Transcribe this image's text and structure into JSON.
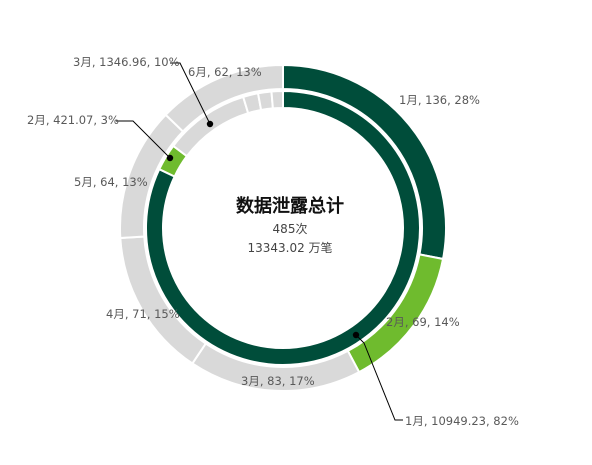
{
  "chart_data": {
    "type": "donut",
    "center": {
      "title": "数据泄露总计",
      "count": "485次",
      "volume": "13343.02 万笔"
    },
    "rings": [
      {
        "ring": "outer",
        "values": [
          {
            "label": "1月",
            "value": 136,
            "percent": "28%",
            "color": "#004d3a"
          },
          {
            "label": "2月",
            "value": 69,
            "percent": "14%",
            "color": "#6fbb2e"
          },
          {
            "label": "3月",
            "value": 83,
            "percent": "17%",
            "color": "#d9d9d9"
          },
          {
            "label": "4月",
            "value": 71,
            "percent": "15%",
            "color": "#d9d9d9"
          },
          {
            "label": "5月",
            "value": 64,
            "percent": "13%",
            "color": "#d9d9d9"
          },
          {
            "label": "6月",
            "value": 62,
            "percent": "13%",
            "color": "#d9d9d9"
          }
        ]
      },
      {
        "ring": "inner",
        "values": [
          {
            "label": "1月",
            "value": 10949.23,
            "percent": "82%",
            "color": "#004d3a"
          },
          {
            "label": "2月",
            "value": 421.07,
            "percent": "3%",
            "color": "#6fbb2e"
          },
          {
            "label": "3月",
            "value": 1346.96,
            "percent": "10%",
            "color": "#d9d9d9"
          },
          {
            "label": "4月",
            "value": 236.5,
            "percent": "",
            "color": "#d9d9d9"
          },
          {
            "label": "5月",
            "value": 210.3,
            "percent": "",
            "color": "#d9d9d9"
          },
          {
            "label": "6月",
            "value": 179.0,
            "percent": "",
            "color": "#d9d9d9"
          }
        ]
      }
    ]
  }
}
